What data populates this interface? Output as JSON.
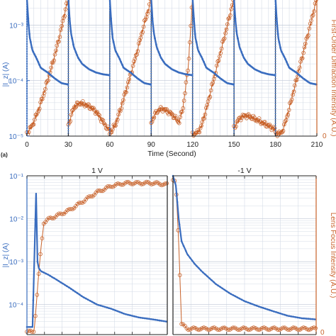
{
  "chart_data": [
    {
      "type": "scatter",
      "panel_label": "(a)",
      "xlabel": "Time (Second)",
      "ylabel_left": "|I_z| (A)",
      "ylabel_right": "First-Order Diffraction Intensity (A.U.)",
      "x_ticks": [
        "0",
        "30",
        "60",
        "90",
        "120",
        "150",
        "180",
        "210"
      ],
      "y_ticks_left": [
        "10⁻⁵",
        "10⁻⁴",
        "10⁻³"
      ],
      "y_ticks_right": [
        "0"
      ],
      "xlim": [
        0,
        210
      ],
      "ylim_left": [
        1e-05,
        0.003
      ],
      "ylim_right": [
        0,
        1
      ],
      "left_scale": "log",
      "grid": true,
      "switch_times": [
        0,
        30,
        60,
        90,
        120,
        150,
        180,
        210
      ],
      "series": [
        {
          "name": "current",
          "axis": "left",
          "color": "#3a6dbf",
          "marker": "filled-circle",
          "segments": [
            {
              "x": [
                0,
                1,
                2,
                4,
                7,
                10,
                15,
                20,
                25,
                29.9
              ],
              "y": [
                0.003,
                0.0012,
                0.0006,
                0.00035,
                0.00025,
                0.00017,
                0.00014,
                0.00011,
                9e-05,
                8.5e-05
              ]
            },
            {
              "x": [
                30,
                31,
                32,
                34,
                37,
                40,
                45,
                50,
                55,
                59.9
              ],
              "y": [
                0.003,
                0.0012,
                0.0007,
                0.0004,
                0.00026,
                0.0002,
                0.00016,
                0.00014,
                0.00013,
                0.000125
              ]
            },
            {
              "x": [
                60,
                61,
                62,
                64,
                67,
                70,
                75,
                80,
                85,
                89.9
              ],
              "y": [
                0.003,
                0.0012,
                0.0006,
                0.00035,
                0.00025,
                0.00017,
                0.00014,
                0.00011,
                9e-05,
                8.5e-05
              ]
            },
            {
              "x": [
                90,
                91,
                92,
                94,
                97,
                100,
                105,
                110,
                115,
                119.9
              ],
              "y": [
                0.003,
                0.0012,
                0.0007,
                0.0004,
                0.00026,
                0.0002,
                0.00016,
                0.00014,
                0.00013,
                0.000125
              ]
            },
            {
              "x": [
                120,
                121,
                122,
                124,
                127,
                130,
                135,
                140,
                145,
                149.9
              ],
              "y": [
                0.003,
                0.0012,
                0.0006,
                0.00035,
                0.00025,
                0.00017,
                0.00014,
                0.00011,
                9e-05,
                8.5e-05
              ]
            },
            {
              "x": [
                150,
                151,
                152,
                154,
                157,
                160,
                165,
                170,
                175,
                179.9
              ],
              "y": [
                0.003,
                0.0012,
                0.0007,
                0.0004,
                0.00026,
                0.0002,
                0.00016,
                0.00014,
                0.00013,
                0.000125
              ]
            },
            {
              "x": [
                180,
                181,
                182,
                184,
                187,
                190,
                195,
                200,
                205,
                209.9
              ],
              "y": [
                0.003,
                0.0012,
                0.0006,
                0.00035,
                0.00025,
                0.00017,
                0.00014,
                0.00011,
                9e-05,
                8.5e-05
              ]
            }
          ]
        },
        {
          "name": "intensity",
          "axis": "right",
          "color": "#c8622a",
          "marker": "open-circle",
          "segments": [
            {
              "x": [
                0,
                4,
                8,
                12,
                16,
                20,
                24,
                27,
                29.9
              ],
              "y": [
                0.02,
                0.08,
                0.18,
                0.3,
                0.44,
                0.58,
                0.74,
                0.88,
                1.0
              ]
            },
            {
              "x": [
                30,
                34,
                38,
                42,
                46,
                50,
                54,
                58,
                59.9
              ],
              "y": [
                0.08,
                0.21,
                0.24,
                0.23,
                0.21,
                0.18,
                0.12,
                0.06,
                0.04
              ]
            },
            {
              "x": [
                60,
                64,
                68,
                72,
                76,
                80,
                84,
                88,
                89.9
              ],
              "y": [
                0.02,
                0.08,
                0.2,
                0.34,
                0.48,
                0.62,
                0.78,
                0.92,
                1.0
              ]
            },
            {
              "x": [
                90,
                94,
                98,
                102,
                106,
                110,
                113,
                117,
                119.9
              ],
              "y": [
                0.1,
                0.18,
                0.2,
                0.18,
                0.15,
                0.1,
                0.2,
                0.52,
                1.0
              ]
            },
            {
              "x": [
                120,
                123,
                126,
                130,
                134,
                138,
                142,
                146,
                149.9
              ],
              "y": [
                0.02,
                0.02,
                0.06,
                0.2,
                0.36,
                0.52,
                0.68,
                0.84,
                1.0
              ]
            },
            {
              "x": [
                150,
                154,
                158,
                162,
                166,
                170,
                174,
                178,
                179.9
              ],
              "y": [
                0.06,
                0.13,
                0.15,
                0.14,
                0.12,
                0.1,
                0.08,
                0.06,
                0.05
              ]
            },
            {
              "x": [
                180,
                184,
                186,
                190,
                194,
                198,
                202,
                206,
                209.9
              ],
              "y": [
                0.02,
                0.02,
                0.06,
                0.2,
                0.36,
                0.52,
                0.68,
                0.84,
                1.0
              ]
            }
          ]
        }
      ]
    },
    {
      "type": "scatter",
      "titles": [
        "1 V",
        "-1 V"
      ],
      "ylabel_left": "|I_z| (A)",
      "ylabel_right": "Lens Focus Intensity (A.U.)",
      "y_ticks_left": [
        "10⁻⁴",
        "10⁻³",
        "10⁻²",
        "10⁻¹"
      ],
      "y_ticks_right": [
        "0"
      ],
      "ylim_left": [
        2e-05,
        0.1
      ],
      "ylim_right": [
        0,
        1
      ],
      "left_scale": "log",
      "xlim": [
        0,
        1
      ],
      "grid": true,
      "panels": [
        {
          "title": "1 V",
          "series": [
            {
              "name": "current",
              "axis": "left",
              "color": "#3a6dbf",
              "marker": "filled-circle",
              "x": [
                0,
                0.04,
                0.065,
                0.075,
                0.085,
                0.1,
                0.15,
                0.2,
                0.3,
                0.4,
                0.5,
                0.6,
                0.7,
                0.8,
                0.9,
                1.0
              ],
              "y": [
                3e-05,
                3e-05,
                0.04,
                0.001,
                0.0007,
                0.0006,
                0.0005,
                0.0004,
                0.00025,
                0.00015,
                0.0001,
                8e-05,
                6e-05,
                5e-05,
                4.5e-05,
                4e-05
              ]
            },
            {
              "name": "intensity",
              "axis": "right",
              "color": "#c8622a",
              "marker": "open-circle",
              "x": [
                0,
                0.05,
                0.1,
                0.12,
                0.15,
                0.2,
                0.3,
                0.4,
                0.5,
                0.6,
                0.7,
                0.8,
                0.9,
                1.0
              ],
              "y": [
                0.0,
                0.0,
                0.55,
                0.72,
                0.74,
                0.76,
                0.8,
                0.86,
                0.92,
                0.96,
                0.98,
                0.98,
                0.98,
                0.97
              ]
            }
          ]
        },
        {
          "title": "-1 V",
          "series": [
            {
              "name": "current",
              "axis": "left",
              "color": "#3a6dbf",
              "marker": "filled-circle",
              "x": [
                0,
                0.02,
                0.04,
                0.06,
                0.1,
                0.15,
                0.2,
                0.3,
                0.4,
                0.5,
                0.6,
                0.7,
                0.8,
                0.9,
                1.0
              ],
              "y": [
                0.1,
                0.06,
                0.01,
                0.003,
                0.0015,
                0.0009,
                0.0006,
                0.0003,
                0.00018,
                0.00012,
                9e-05,
                7e-05,
                5.5e-05,
                4.8e-05,
                4.5e-05
              ]
            },
            {
              "name": "intensity",
              "axis": "right",
              "color": "#c8622a",
              "marker": "open-circle",
              "x": [
                0,
                0.02,
                0.04,
                0.06,
                0.1,
                0.2,
                0.4,
                0.6,
                0.8,
                1.0
              ],
              "y": [
                1.0,
                0.98,
                0.6,
                0.05,
                0.02,
                0.02,
                0.02,
                0.02,
                0.02,
                0.02
              ]
            }
          ]
        }
      ]
    }
  ]
}
